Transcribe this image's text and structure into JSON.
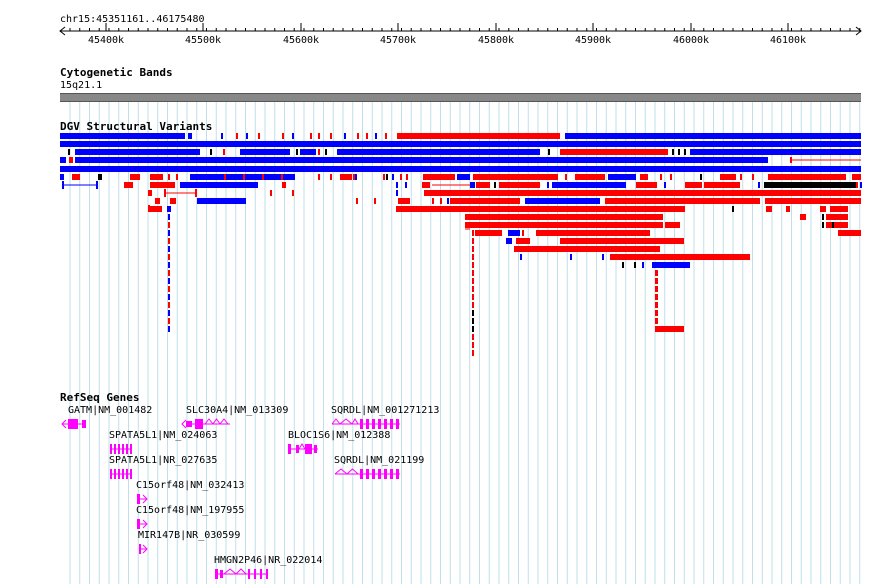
{
  "region": {
    "label": "chr15:45351161..46175480",
    "start": 45351161,
    "end": 46175480
  },
  "ruler": {
    "ticks": [
      "45400k",
      "45500k",
      "45600k",
      "45700k",
      "45800k",
      "45900k",
      "46000k",
      "46100k"
    ]
  },
  "cytobands": {
    "title": "Cytogenetic Bands",
    "band": "15q21.1"
  },
  "dgv": {
    "title": "DGV Structural Variants",
    "colors": {
      "loss": "#ff0000",
      "gain": "#0000ff",
      "other": "#000000"
    }
  },
  "refseq": {
    "title": "RefSeq Genes",
    "color": "#ff00ff",
    "genes": [
      {
        "label": "GATM|NM_001482"
      },
      {
        "label": "SLC30A4|NM_013309"
      },
      {
        "label": "SQRDL|NM_001271213"
      },
      {
        "label": "SPATA5L1|NM_024063"
      },
      {
        "label": "BLOC1S6|NM_012388"
      },
      {
        "label": "SPATA5L1|NR_027635"
      },
      {
        "label": "SQRDL|NM_021199"
      },
      {
        "label": "C15orf48|NM_032413"
      },
      {
        "label": "C15orf48|NM_197955"
      },
      {
        "label": "MIR147B|NR_030599"
      },
      {
        "label": "HMGN2P46|NR_022014"
      }
    ]
  }
}
